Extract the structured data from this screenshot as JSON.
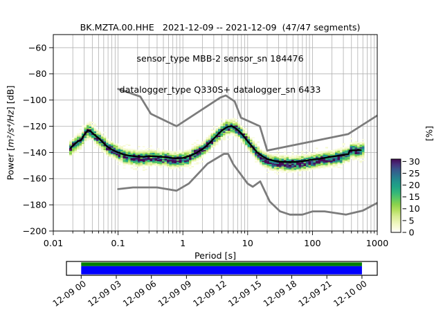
{
  "title": {
    "line1": "BK.MZTA.00.HHE   2021-12-09 -- 2021-12-09  (47/47 segments)",
    "line2": "sensor_type MBB-2 sensor_sn 184476",
    "line3": "datalogger_type Q330S+ datalogger_sn 6433"
  },
  "chart_data": {
    "type": "heatmap",
    "xlabel": "Period [s]",
    "ylabel_parts": {
      "pre": "Power [",
      "units": "m²/s⁴/Hz",
      "post": "] [dB]"
    },
    "x_scale": "log",
    "xlim": [
      0.01,
      1000
    ],
    "ylim": [
      -200,
      -50
    ],
    "grid": true,
    "grid_color": "#b0b0b0",
    "x_ticks": [
      {
        "v": 0.01,
        "label": "0.01"
      },
      {
        "v": 0.1,
        "label": "0.1"
      },
      {
        "v": 1,
        "label": "1"
      },
      {
        "v": 10,
        "label": "10"
      },
      {
        "v": 100,
        "label": "100"
      },
      {
        "v": 1000,
        "label": "1000"
      }
    ],
    "y_ticks": [
      {
        "v": -60,
        "label": "−60"
      },
      {
        "v": -80,
        "label": "−80"
      },
      {
        "v": -100,
        "label": "−100"
      },
      {
        "v": -120,
        "label": "−120"
      },
      {
        "v": -140,
        "label": "−140"
      },
      {
        "v": -160,
        "label": "−160"
      },
      {
        "v": -180,
        "label": "−180"
      },
      {
        "v": -200,
        "label": "−200"
      }
    ],
    "colorbar": {
      "label": "[%]",
      "vmax": 31,
      "ticks": [
        {
          "v": 0,
          "label": "0"
        },
        {
          "v": 5,
          "label": "5"
        },
        {
          "v": 10,
          "label": "10"
        },
        {
          "v": 15,
          "label": "15"
        },
        {
          "v": 20,
          "label": "20"
        },
        {
          "v": 25,
          "label": "25"
        },
        {
          "v": 30,
          "label": "30"
        }
      ],
      "stops": [
        [
          0.0,
          "#ffffff"
        ],
        [
          0.06,
          "#f9fbdc"
        ],
        [
          0.13,
          "#eef6bb"
        ],
        [
          0.22,
          "#d6ec91"
        ],
        [
          0.3,
          "#b5e061"
        ],
        [
          0.38,
          "#8bd24c"
        ],
        [
          0.46,
          "#5cc863"
        ],
        [
          0.54,
          "#35b779"
        ],
        [
          0.62,
          "#20a486"
        ],
        [
          0.7,
          "#21918c"
        ],
        [
          0.78,
          "#2c728e"
        ],
        [
          0.86,
          "#38568b"
        ],
        [
          0.93,
          "#462f7c"
        ],
        [
          1.0,
          "#440b54"
        ]
      ]
    },
    "mean_curve": {
      "color": "#000000",
      "periods": [
        0.0185,
        0.021,
        0.024,
        0.027,
        0.03,
        0.034,
        0.038,
        0.043,
        0.05,
        0.06,
        0.07,
        0.085,
        0.1,
        0.12,
        0.15,
        0.2,
        0.25,
        0.3,
        0.4,
        0.5,
        0.6,
        0.8,
        1.0,
        1.3,
        1.6,
        2.0,
        2.5,
        3.0,
        3.5,
        4.0,
        4.5,
        5.0,
        5.7,
        6.5,
        7.5,
        8.5,
        10,
        12,
        14,
        17,
        20,
        25,
        30,
        40,
        50,
        60,
        80,
        100,
        130,
        160,
        200,
        250,
        300,
        360,
        375,
        450,
        550,
        560
      ],
      "db": [
        -136.5,
        -134.0,
        -131.5,
        -130.5,
        -126.5,
        -123.2,
        -124.0,
        -126.5,
        -129.0,
        -133.0,
        -136.0,
        -138.5,
        -140.0,
        -141.5,
        -142.5,
        -143.2,
        -143.3,
        -142.8,
        -143.0,
        -143.5,
        -144.0,
        -144.5,
        -144.2,
        -142.5,
        -140.5,
        -137.5,
        -133.5,
        -129.5,
        -126.0,
        -123.3,
        -121.5,
        -120.3,
        -120.0,
        -121.5,
        -124.0,
        -127.0,
        -131.5,
        -136.0,
        -140.0,
        -143.0,
        -145.0,
        -146.3,
        -147.0,
        -147.3,
        -147.3,
        -147.0,
        -146.3,
        -145.5,
        -144.8,
        -144.0,
        -143.2,
        -142.5,
        -141.8,
        -141.3,
        -138.5,
        -138.3,
        -138.2,
        -138.2
      ]
    },
    "noise_models": {
      "color": "#7c7c7c",
      "nhnm": {
        "periods": [
          0.1,
          0.22,
          0.32,
          0.8,
          3.8,
          4.6,
          6.3,
          7.9,
          15.4,
          20,
          354.8,
          1000
        ],
        "db": [
          -91.5,
          -97.4,
          -110.5,
          -120.0,
          -98.0,
          -96.5,
          -101.0,
          -113.5,
          -120.0,
          -138.5,
          -126.0,
          -111.8
        ]
      },
      "nlnm": {
        "periods": [
          0.1,
          0.17,
          0.4,
          0.8,
          1.24,
          2.4,
          4.3,
          5,
          6,
          10,
          12,
          15.6,
          21.9,
          31.6,
          45,
          70,
          101,
          154,
          328,
          600,
          1000
        ],
        "db": [
          -168.0,
          -166.7,
          -166.7,
          -169.2,
          -163.7,
          -148.6,
          -141.1,
          -141.1,
          -149.0,
          -163.8,
          -166.2,
          -162.1,
          -177.5,
          -185.0,
          -187.5,
          -187.5,
          -185.0,
          -185.0,
          -187.5,
          -184.4,
          -178.5
        ]
      }
    },
    "histogram": {
      "t_min": 0.0185,
      "t_max": 650,
      "step_octaves": 0.125,
      "sigma_db": 2.5,
      "max_percent": 31,
      "seed": 987654321,
      "low_skew_regions": [
        [
          0.12,
          1.3
        ],
        [
          15,
          280
        ]
      ],
      "skew_db": -1.2
    }
  },
  "timeline": {
    "labels": [
      "12-09 00",
      "12-09 03",
      "12-09 06",
      "12-09 09",
      "12-09 12",
      "12-09 15",
      "12-09 18",
      "12-09 21",
      "12-10 00"
    ],
    "day_start_frac": 0.0474,
    "day_end_frac": 0.9508,
    "top_band_color": "#008000",
    "bottom_band_color": "#0000ff",
    "box_color": "#ffffff",
    "border_color": "#000000"
  }
}
